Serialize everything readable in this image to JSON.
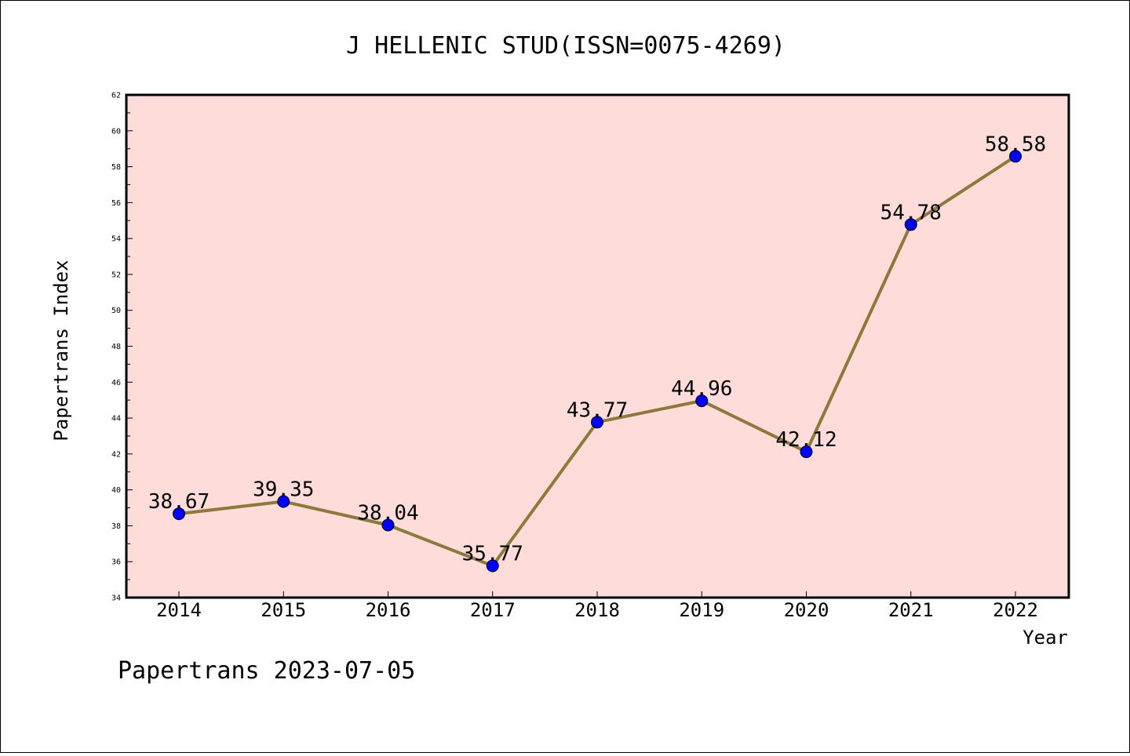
{
  "chart_data": {
    "type": "line",
    "title": "J HELLENIC STUD(ISSN=0075-4269)",
    "xlabel": "Year",
    "ylabel": "Papertrans Index",
    "categories": [
      "2014",
      "2015",
      "2016",
      "2017",
      "2018",
      "2019",
      "2020",
      "2021",
      "2022"
    ],
    "series": [
      {
        "values": [
          38.67,
          39.35,
          38.04,
          35.77,
          43.77,
          44.96,
          42.12,
          54.78,
          58.58
        ],
        "labels": [
          "38.67",
          "39.35",
          "38.04",
          "35.77",
          "43.77",
          "44.96",
          "42.12",
          "54.78",
          "58.58"
        ]
      }
    ],
    "ylim": [
      34,
      62
    ],
    "yticks": [
      "34",
      "36",
      "38",
      "40",
      "42",
      "44",
      "46",
      "48",
      "50",
      "52",
      "54",
      "56",
      "58",
      "60",
      "62"
    ],
    "grid": false,
    "colors": {
      "plot_background": "#fddcda",
      "line": "#8b7a3a",
      "marker": "#0000ff"
    }
  },
  "footer": "Papertrans 2023-07-05"
}
